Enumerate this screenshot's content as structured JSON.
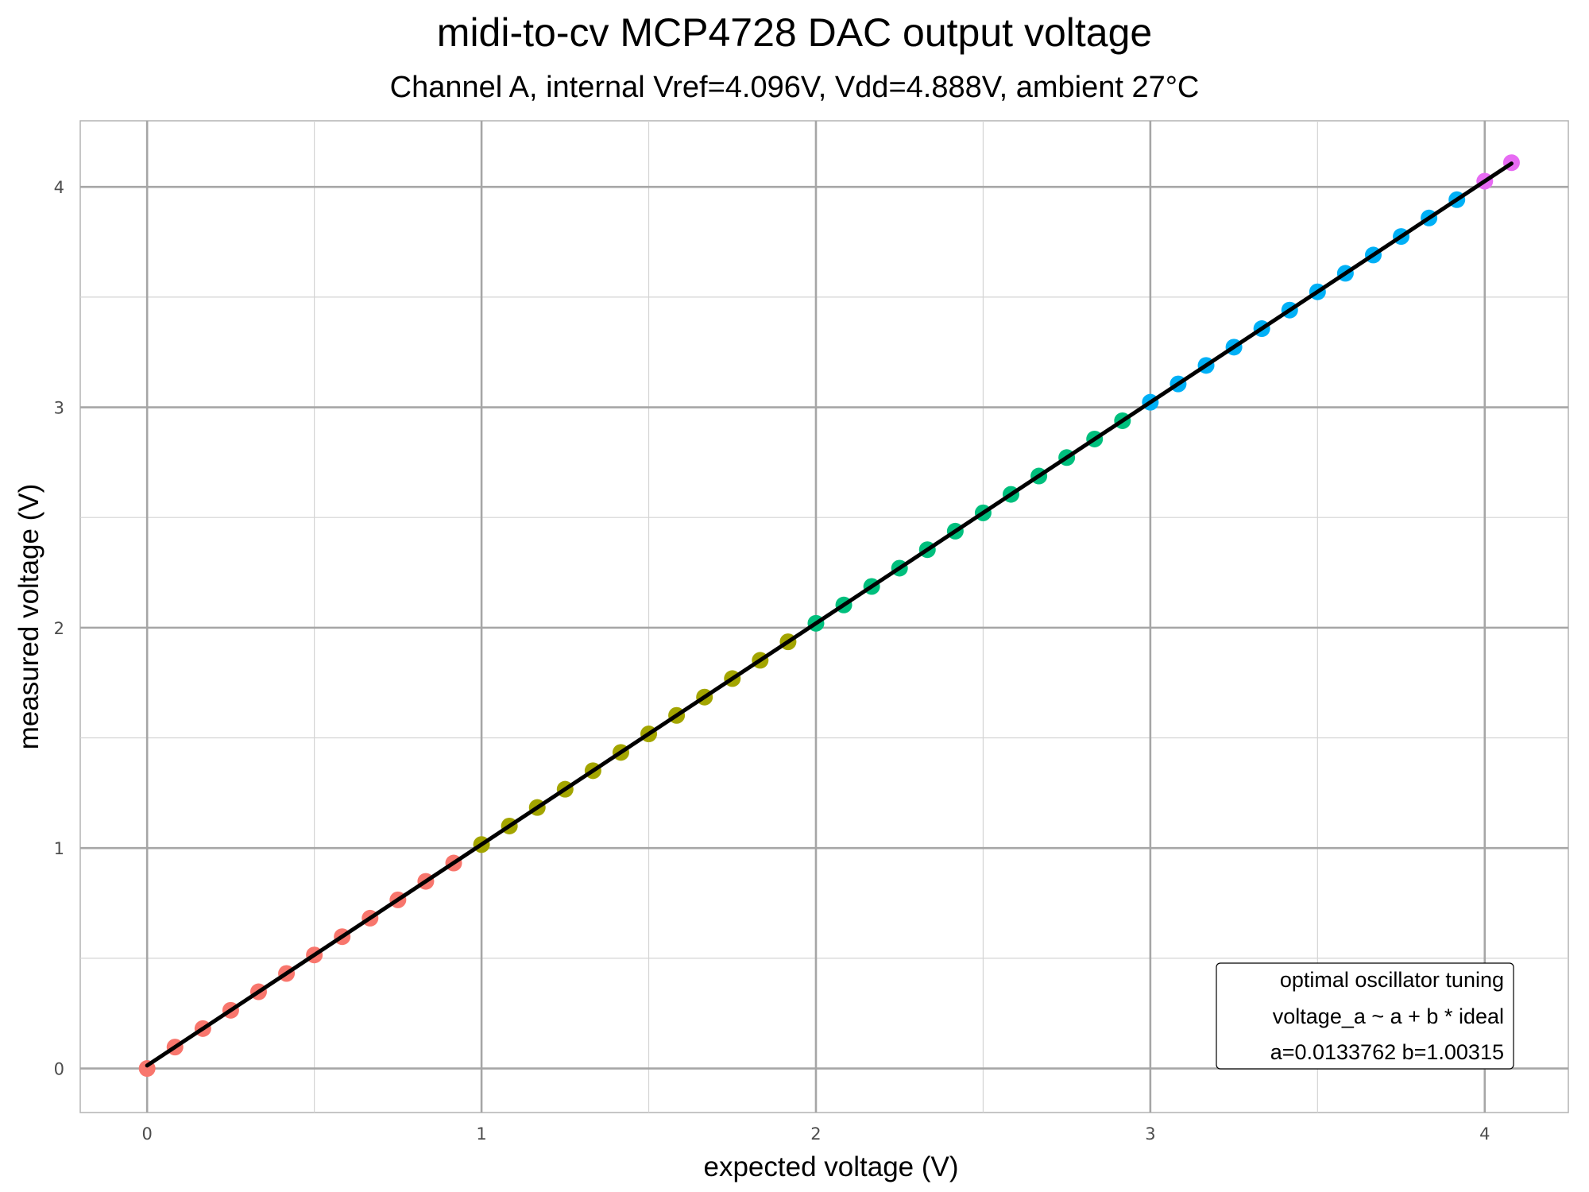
{
  "chart_data": {
    "type": "scatter",
    "title": "midi-to-cv MCP4728 DAC output voltage",
    "subtitle": "Channel A, internal Vref=4.096V, Vdd=4.888V, ambient 27°C",
    "xlabel": "expected voltage (V)",
    "ylabel": "measured voltage (V)",
    "xlim": [
      -0.2,
      4.25
    ],
    "ylim": [
      -0.2,
      4.3
    ],
    "x_ticks": [
      "0",
      "1",
      "2",
      "3",
      "4"
    ],
    "y_ticks": [
      "0",
      "1",
      "2",
      "3",
      "4"
    ],
    "grid": true,
    "legend": "none",
    "series": [
      {
        "color": "#F8766D",
        "x": [
          0,
          0.0833,
          0.1667,
          0.25,
          0.3333,
          0.4167,
          0.5,
          0.5833,
          0.6667,
          0.75,
          0.8333,
          0.9167
        ],
        "y": [
          0.0,
          0.097,
          0.181,
          0.264,
          0.348,
          0.431,
          0.515,
          0.598,
          0.682,
          0.765,
          0.849,
          0.932
        ]
      },
      {
        "color": "#A3A500",
        "x": [
          1.0,
          1.0833,
          1.1667,
          1.25,
          1.3333,
          1.4167,
          1.5,
          1.5833,
          1.6667,
          1.75,
          1.8333,
          1.9167
        ],
        "y": [
          1.016,
          1.1,
          1.184,
          1.267,
          1.351,
          1.434,
          1.518,
          1.602,
          1.685,
          1.769,
          1.852,
          1.936
        ]
      },
      {
        "color": "#00BF7D",
        "x": [
          2.0,
          2.0833,
          2.1667,
          2.25,
          2.3333,
          2.4167,
          2.5,
          2.5833,
          2.6667,
          2.75,
          2.8333,
          2.9167
        ],
        "y": [
          2.02,
          2.103,
          2.187,
          2.27,
          2.354,
          2.438,
          2.521,
          2.605,
          2.688,
          2.772,
          2.856,
          2.939
        ]
      },
      {
        "color": "#00B0F6",
        "x": [
          3.0,
          3.0833,
          3.1667,
          3.25,
          3.3333,
          3.4167,
          3.5,
          3.5833,
          3.6667,
          3.75,
          3.8333,
          3.9167
        ],
        "y": [
          3.023,
          3.106,
          3.19,
          3.273,
          3.357,
          3.441,
          3.524,
          3.608,
          3.691,
          3.775,
          3.859,
          3.942
        ]
      },
      {
        "color": "#E76BF3",
        "x": [
          4.0,
          4.08
        ],
        "y": [
          4.026,
          4.11
        ]
      }
    ],
    "fit_line": {
      "a": 0.0133762,
      "b": 1.00315,
      "x_range": [
        0,
        4.08
      ],
      "color": "#000000"
    },
    "annotation": {
      "lines": [
        "optimal oscillator tuning",
        "voltage_a ~ a + b * ideal",
        "a=0.0133762  b=1.00315"
      ],
      "placement": "bottom-right"
    }
  }
}
